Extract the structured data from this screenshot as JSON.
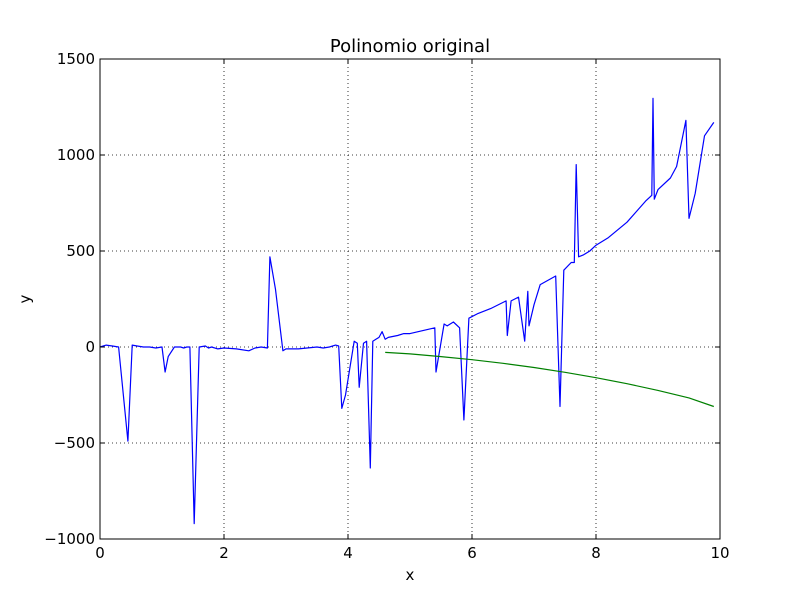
{
  "chart_data": {
    "type": "line",
    "title": "Polinomio original",
    "xlabel": "x",
    "ylabel": "y",
    "xlim": [
      0,
      10
    ],
    "ylim": [
      -1000,
      1500
    ],
    "xticks": [
      0,
      2,
      4,
      6,
      8,
      10
    ],
    "yticks": [
      -1000,
      -500,
      0,
      500,
      1000,
      1500
    ],
    "xtick_labels": [
      "0",
      "2",
      "4",
      "6",
      "8",
      "10"
    ],
    "ytick_labels": [
      "−1000",
      "−500",
      "0",
      "500",
      "1000",
      "1500"
    ],
    "grid": true,
    "series": [
      {
        "color": "#0000ff",
        "x": [
          0.0,
          0.1,
          0.2,
          0.3,
          0.45,
          0.52,
          0.6,
          0.7,
          0.8,
          0.9,
          1.0,
          1.05,
          1.1,
          1.2,
          1.3,
          1.35,
          1.4,
          1.45,
          1.52,
          1.6,
          1.7,
          1.75,
          1.8,
          1.9,
          2.0,
          2.2,
          2.4,
          2.5,
          2.6,
          2.7,
          2.74,
          2.83,
          2.95,
          3.0,
          3.2,
          3.5,
          3.6,
          3.7,
          3.8,
          3.85,
          3.9,
          3.96,
          4.1,
          4.15,
          4.18,
          4.25,
          4.3,
          4.36,
          4.4,
          4.45,
          4.5,
          4.55,
          4.6,
          4.65,
          4.8,
          4.9,
          5.0,
          5.4,
          5.42,
          5.55,
          5.6,
          5.7,
          5.8,
          5.87,
          5.95,
          6.1,
          6.3,
          6.55,
          6.57,
          6.63,
          6.75,
          6.85,
          6.9,
          6.92,
          7.0,
          7.1,
          7.35,
          7.42,
          7.48,
          7.6,
          7.65,
          7.68,
          7.72,
          7.8,
          7.9,
          8.0,
          8.2,
          8.5,
          8.8,
          8.9,
          8.92,
          8.94,
          9.0,
          9.2,
          9.3,
          9.45,
          9.5,
          9.6,
          9.75,
          9.9
        ],
        "y": [
          0,
          10,
          5,
          0,
          -490,
          10,
          5,
          0,
          0,
          -5,
          0,
          -130,
          -50,
          0,
          0,
          -5,
          0,
          0,
          -920,
          0,
          5,
          -5,
          0,
          -10,
          -5,
          -10,
          -20,
          -5,
          0,
          -5,
          470,
          300,
          -20,
          -10,
          -10,
          0,
          -5,
          0,
          10,
          5,
          -320,
          -250,
          30,
          20,
          -210,
          20,
          30,
          -630,
          30,
          40,
          50,
          80,
          40,
          50,
          60,
          70,
          70,
          100,
          -130,
          120,
          110,
          130,
          100,
          -380,
          150,
          175,
          200,
          240,
          60,
          240,
          260,
          30,
          290,
          110,
          220,
          325,
          370,
          -310,
          400,
          440,
          440,
          950,
          470,
          480,
          500,
          530,
          570,
          650,
          760,
          790,
          1295,
          770,
          820,
          880,
          940,
          1180,
          670,
          800,
          1100,
          1170
        ]
      },
      {
        "color": "#008000",
        "x": [
          4.6,
          5.0,
          5.5,
          6.0,
          6.5,
          7.0,
          7.5,
          8.0,
          8.5,
          9.0,
          9.5,
          9.9
        ],
        "y": [
          -28,
          -36,
          -50,
          -66,
          -85,
          -107,
          -132,
          -160,
          -191,
          -226,
          -265,
          -310
        ]
      }
    ]
  }
}
